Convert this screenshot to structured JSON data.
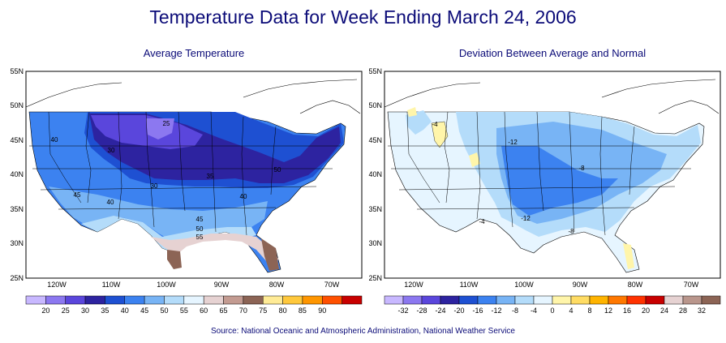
{
  "title": "Temperature Data for Week Ending March 24, 2006",
  "source": "Source:  National Oceanic and Atmospheric Administration, National Weather Service",
  "left_panel": {
    "title": "Average Temperature",
    "lat_labels": [
      "55N",
      "50N",
      "45N",
      "40N",
      "35N",
      "30N",
      "25N"
    ],
    "lon_labels": [
      "120W",
      "110W",
      "100W",
      "90W",
      "80W",
      "70W"
    ],
    "contour_labels": [
      "25",
      "30",
      "35",
      "50",
      "30",
      "40",
      "40",
      "45",
      "40",
      "45",
      "50",
      "55"
    ],
    "legend_values": [
      "20",
      "25",
      "30",
      "35",
      "40",
      "45",
      "50",
      "55",
      "60",
      "65",
      "70",
      "75",
      "80",
      "85",
      "90"
    ],
    "legend_colors": [
      "#c8b8ff",
      "#8c78f0",
      "#5a46dc",
      "#2d23a0",
      "#1e50d2",
      "#3c82f0",
      "#78b4f5",
      "#b4dcfa",
      "#e6f5ff",
      "#e6d2d2",
      "#c39b91",
      "#8c6455",
      "#ffeb96",
      "#ffc83c",
      "#ff9600",
      "#ff5000",
      "#c80000"
    ]
  },
  "right_panel": {
    "title": "Deviation Between Average and Normal",
    "lat_labels": [
      "55N",
      "50N",
      "45N",
      "40N",
      "35N",
      "30N",
      "25N"
    ],
    "lon_labels": [
      "120W",
      "110W",
      "100W",
      "90W",
      "80W",
      "70W"
    ],
    "contour_labels": [
      "-4",
      "-12",
      "-8",
      "-4",
      "-12",
      "-8"
    ],
    "legend_values": [
      "-32",
      "-28",
      "-24",
      "-20",
      "-16",
      "-12",
      "-8",
      "-4",
      "0",
      "4",
      "8",
      "12",
      "16",
      "20",
      "24",
      "28",
      "32"
    ],
    "legend_colors": [
      "#c8b8ff",
      "#8c78f0",
      "#5a46dc",
      "#2d23a0",
      "#1e50d2",
      "#3c82f0",
      "#78b4f5",
      "#b4dcfa",
      "#e6f5ff",
      "#fff5aa",
      "#ffdc64",
      "#ffb400",
      "#ff7800",
      "#ff3200",
      "#c80000",
      "#e6d2d2",
      "#b9968c",
      "#8c6455"
    ]
  }
}
